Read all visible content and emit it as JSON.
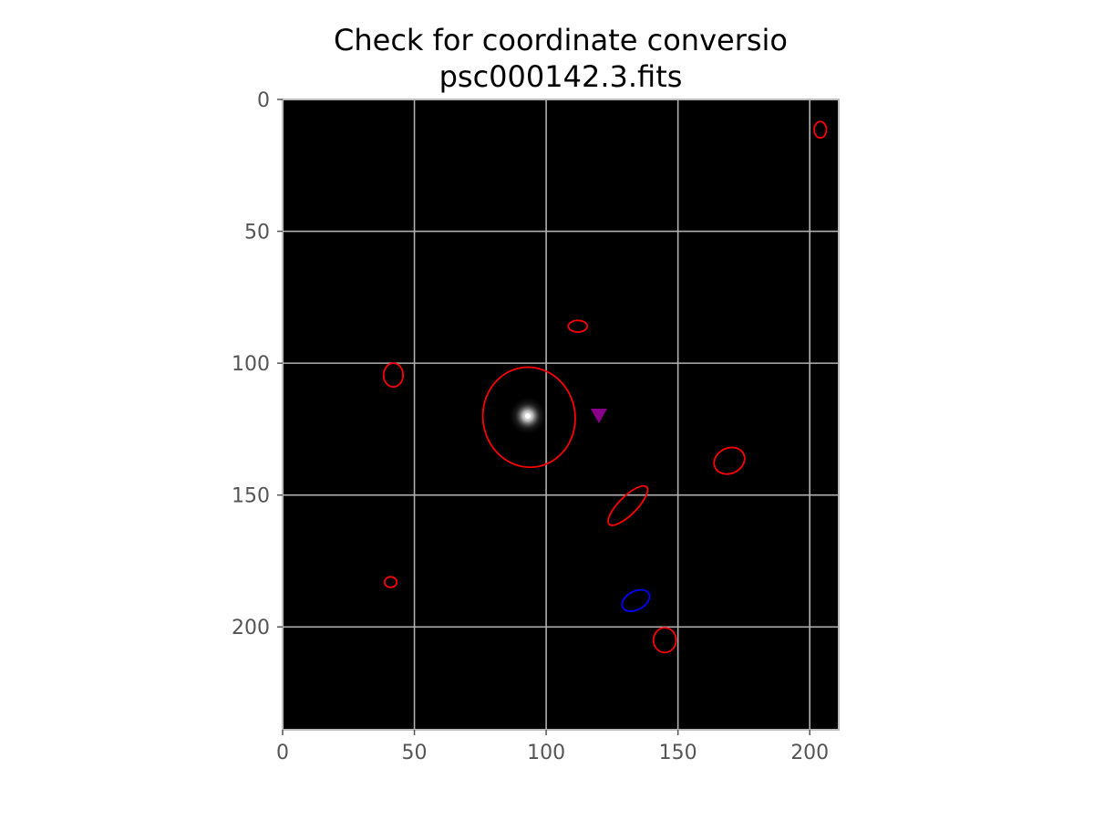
{
  "chart_data": {
    "type": "scatter",
    "title": "Check for coordinate conversio",
    "subtitle": "psc000142.3.fits",
    "xlabel": "",
    "ylabel": "",
    "xlim": [
      0,
      211
    ],
    "ylim": [
      239,
      0
    ],
    "x_ticks": [
      0,
      50,
      100,
      150,
      200
    ],
    "y_ticks": [
      0,
      50,
      100,
      150,
      200
    ],
    "grid": true,
    "image": {
      "description_type": "fits-image",
      "background": "#000000",
      "source": {
        "x": 93,
        "y": 120
      }
    },
    "colors": {
      "detections": "#ff0000",
      "target": "#0000ff",
      "marker": "#8b008b",
      "grid": "#b0b0b0"
    },
    "ellipses": [
      {
        "cx": 204,
        "cy": 11.5,
        "rx": 2.3,
        "ry": 3.1,
        "angle": 0,
        "color": "red"
      },
      {
        "cx": 112,
        "cy": 86,
        "rx": 3.6,
        "ry": 2.2,
        "angle": 0,
        "color": "red"
      },
      {
        "cx": 42,
        "cy": 104.5,
        "rx": 3.7,
        "ry": 4.5,
        "angle": 0,
        "color": "red"
      },
      {
        "cx": 93.5,
        "cy": 120.5,
        "rx": 17.5,
        "ry": 19,
        "angle": -8,
        "color": "red"
      },
      {
        "cx": 169.5,
        "cy": 137,
        "rx": 6,
        "ry": 4.8,
        "angle": -25,
        "color": "red"
      },
      {
        "cx": 131,
        "cy": 154,
        "rx": 10,
        "ry": 3.4,
        "angle": -45,
        "color": "red"
      },
      {
        "cx": 41,
        "cy": 183,
        "rx": 2.3,
        "ry": 2,
        "angle": 0,
        "color": "red"
      },
      {
        "cx": 134,
        "cy": 190,
        "rx": 5.6,
        "ry": 3.5,
        "angle": -28,
        "color": "blue"
      },
      {
        "cx": 145,
        "cy": 205,
        "rx": 4.3,
        "ry": 4.7,
        "angle": 0,
        "color": "red"
      }
    ],
    "markers": [
      {
        "x": 120,
        "y": 120,
        "shape": "triangle-down",
        "color": "#8b008b"
      }
    ]
  }
}
